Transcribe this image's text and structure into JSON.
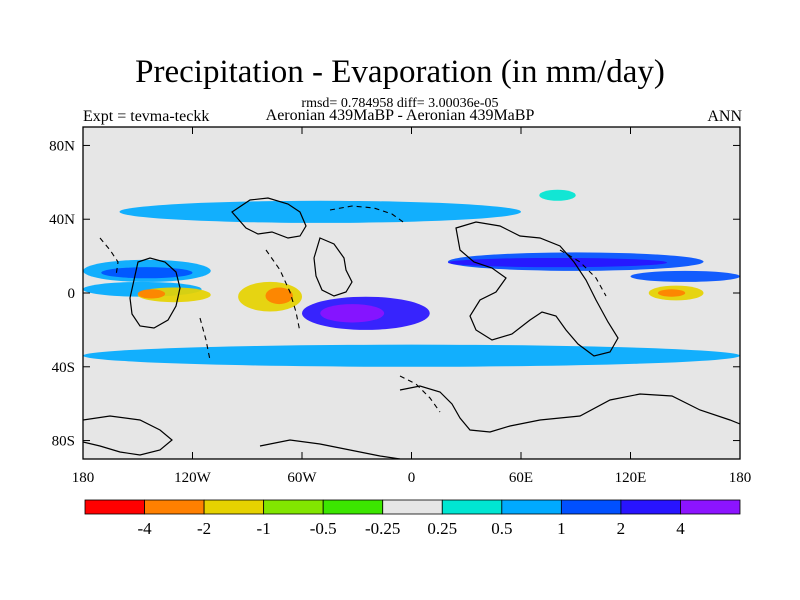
{
  "chart_data": {
    "type": "heatmap",
    "title": "Precipitation - Evaporation (in mm/day)",
    "stats_line": "rmsd= 0.784958 diff= 3.00036e-05",
    "experiment_label": "Expt = tevma-teckk",
    "comparison_label": "Aeronian 439MaBP - Aeronian 439MaBP",
    "season_label": "ANN",
    "x_range": [
      -180,
      180
    ],
    "y_range": [
      -90,
      90
    ],
    "x_ticks": [
      {
        "value": -180,
        "label": "180"
      },
      {
        "value": -120,
        "label": "120W"
      },
      {
        "value": -60,
        "label": "60W"
      },
      {
        "value": 0,
        "label": "0"
      },
      {
        "value": 60,
        "label": "60E"
      },
      {
        "value": 120,
        "label": "120E"
      },
      {
        "value": 180,
        "label": "180"
      }
    ],
    "y_ticks": [
      {
        "value": 80,
        "label": "80N"
      },
      {
        "value": 40,
        "label": "40N"
      },
      {
        "value": 0,
        "label": "0"
      },
      {
        "value": -40,
        "label": "40S"
      },
      {
        "value": -80,
        "label": "80S"
      }
    ],
    "colorbar": {
      "colors": [
        "#ff0000",
        "#ff8000",
        "#e6d200",
        "#82e600",
        "#3ce600",
        "#e6e6e6",
        "#00e6d2",
        "#00aaff",
        "#0050ff",
        "#2814ff",
        "#8c14ff"
      ],
      "boundaries": [
        -4,
        -2,
        -1,
        -0.5,
        -0.25,
        0.25,
        0.5,
        1,
        2,
        4
      ],
      "labels": [
        "-4",
        "-2",
        "-1",
        "-0.5",
        "-0.25",
        "0.25",
        "0.5",
        "1",
        "2",
        "4"
      ]
    },
    "background_color": "#e6e6e6",
    "features": [
      {
        "name": "itcz-east-pacific-wet",
        "class": 7,
        "lon": [
          -180,
          -115
        ],
        "lat": [
          -2,
          6
        ]
      },
      {
        "name": "north-pacific-storm-band",
        "class": 7,
        "lon": [
          -180,
          -110
        ],
        "lat": [
          6,
          18
        ]
      },
      {
        "name": "north-pacific-inner-band",
        "class": 8,
        "lon": [
          -170,
          -120
        ],
        "lat": [
          8,
          14
        ]
      },
      {
        "name": "pacific-subtropical-dry",
        "class": 2,
        "lon": [
          -150,
          -110
        ],
        "lat": [
          -5,
          3
        ]
      },
      {
        "name": "pacific-strong-dry",
        "class": 1,
        "lon": [
          -150,
          -135
        ],
        "lat": [
          -3,
          2
        ]
      },
      {
        "name": "tropical-atlantic-dry",
        "class": 2,
        "lon": [
          -95,
          -60
        ],
        "lat": [
          -10,
          6
        ]
      },
      {
        "name": "tropical-atlantic-strong-dry",
        "class": 1,
        "lon": [
          -80,
          -65
        ],
        "lat": [
          -6,
          3
        ]
      },
      {
        "name": "south-pacific-convergence",
        "class": 9,
        "lon": [
          -60,
          10
        ],
        "lat": [
          -20,
          -2
        ]
      },
      {
        "name": "south-convergence-core",
        "class": 10,
        "lon": [
          -50,
          -15
        ],
        "lat": [
          -16,
          -6
        ]
      },
      {
        "name": "south-midlat-wet-band",
        "class": 7,
        "lon": [
          -180,
          180
        ],
        "lat": [
          -40,
          -28
        ]
      },
      {
        "name": "north-midlat-wet-band",
        "class": 7,
        "lon": [
          -160,
          60
        ],
        "lat": [
          38,
          50
        ]
      },
      {
        "name": "north-atlantic-storm-track",
        "class": 8,
        "lon": [
          20,
          160
        ],
        "lat": [
          12,
          22
        ]
      },
      {
        "name": "east-basin-itcz",
        "class": 9,
        "lon": [
          20,
          140
        ],
        "lat": [
          14,
          19
        ]
      },
      {
        "name": "east-basin-dry-cell",
        "class": 2,
        "lon": [
          130,
          160
        ],
        "lat": [
          -4,
          4
        ]
      },
      {
        "name": "east-basin-strong-dry",
        "class": 1,
        "lon": [
          135,
          150
        ],
        "lat": [
          -2,
          2
        ]
      },
      {
        "name": "equatorial-band-east",
        "class": 8,
        "lon": [
          120,
          180
        ],
        "lat": [
          6,
          12
        ]
      },
      {
        "name": "southern-ocean-wet",
        "class": 5,
        "lon": [
          -180,
          180
        ],
        "lat": [
          -60,
          -45
        ]
      },
      {
        "name": "arctic-fringe-wet",
        "class": 6,
        "lon": [
          70,
          90
        ],
        "lat": [
          50,
          56
        ]
      }
    ]
  }
}
